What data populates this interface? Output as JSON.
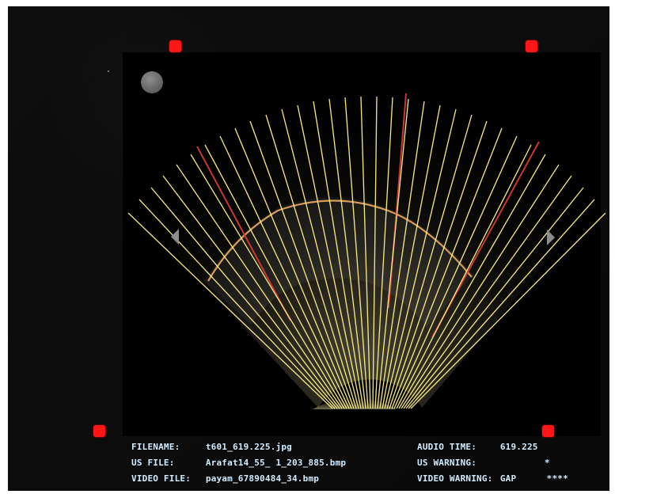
{
  "screen": {
    "title": "",
    "colors": {
      "frame_background": "#0a0a0a",
      "inner_panel": "#000000",
      "markers": "#ff1616",
      "fan_lines": "#ffec84",
      "contour_lines": "#ff2a2a",
      "text": "#d2ecff"
    },
    "icons": {
      "top_left_marker": "red-square-marker-icon",
      "top_right_marker": "red-square-marker-icon",
      "bottom_left_marker": "red-square-marker-icon",
      "bottom_right_marker": "red-square-marker-icon",
      "left_side_arrow": "left-triangle-icon",
      "right_side_arrow": "right-triangle-icon",
      "status_dot": "gray-circle-icon"
    }
  },
  "footer": {
    "filename_label": "FILENAME:",
    "filename_value": "t601_619.225.jpg",
    "us_file_label": "US FILE:",
    "us_file_value": "Arafat14_55_ 1_203_885.bmp",
    "video_file_label": "VIDEO FILE:",
    "video_file_value": "payam_67890484_34.bmp",
    "audio_time_label": "AUDIO TIME:",
    "audio_time_value": "619.225",
    "us_warning_label": "US WARNING:",
    "us_warning_value": "*",
    "video_warning_label": "VIDEO WARNING:",
    "video_warning_value": "GAP",
    "video_warning_extra": "****"
  }
}
